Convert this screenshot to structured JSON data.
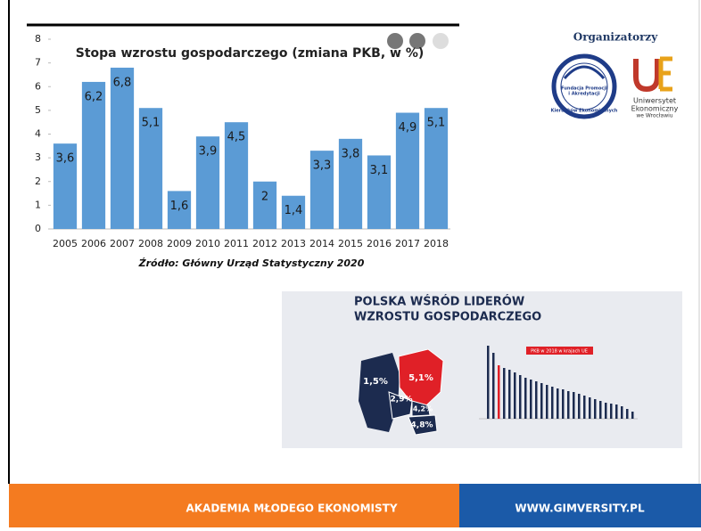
{
  "chart_data": {
    "type": "bar",
    "title": "Stopa wzrostu gospodarczego  (zmiana PKB, w %)",
    "source": "Źródło: Główny Urząd Statystyczny 2020",
    "categories": [
      "2005",
      "2006",
      "2007",
      "2008",
      "2009",
      "2010",
      "2011",
      "2012",
      "2013",
      "2014",
      "2015",
      "2016",
      "2017",
      "2018"
    ],
    "values": [
      3.6,
      6.2,
      6.8,
      5.1,
      1.6,
      3.9,
      4.5,
      2,
      1.4,
      3.3,
      3.8,
      3.1,
      4.9,
      5.1
    ],
    "value_labels": [
      "3,6",
      "6,2",
      "6,8",
      "5,1",
      "1,6",
      "3,9",
      "4,5",
      "2",
      "1,4",
      "3,3",
      "3,8",
      "3,1",
      "4,9",
      "5,1"
    ],
    "color": "#5b9bd5",
    "ylim": [
      0,
      8
    ],
    "yticks": [
      0,
      1,
      2,
      3,
      4,
      5,
      6,
      7,
      8
    ],
    "grid": false
  },
  "organizers": {
    "heading": "Organizatorzy",
    "logo1": [
      "Fundacja Promocji",
      "i Akredytacji",
      "Kierunków Ekonomicznych"
    ],
    "logo2": [
      "Uniwersytet",
      "Ekonomiczny",
      "we Wrocławiu"
    ]
  },
  "infographic": {
    "title": [
      "POLSKA WŚRÓD LIDERÓW",
      "WZROSTU GOSPODARCZEGO"
    ],
    "legend": "PKB w 2018 w krajach UE",
    "map_labels": [
      "1,5%",
      "5,1%",
      "2,9%",
      "4,2%",
      "4,8%"
    ]
  },
  "footer": {
    "left": "AKADEMIA MŁODEGO EKONOMISTY",
    "right": "WWW.GIMVERSITY.PL"
  }
}
